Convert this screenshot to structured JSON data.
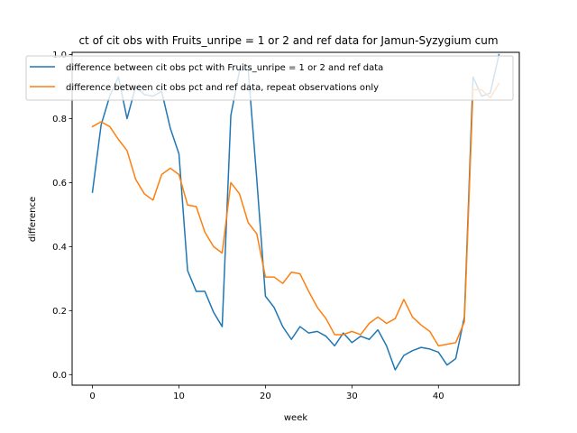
{
  "chart_data": {
    "type": "line",
    "title": "ct of cit obs with Fruits_unripe = 1 or 2 and ref data for Jamun-Syzygium cum",
    "xlabel": "week",
    "ylabel": "difference",
    "xlim": [
      -2.35,
      49.35
    ],
    "ylim": [
      -0.033,
      1.007
    ],
    "xticks": [
      0,
      10,
      20,
      30,
      40
    ],
    "yticks": [
      0.0,
      0.2,
      0.4,
      0.6,
      0.8,
      1.0
    ],
    "xtick_labels": [
      "0",
      "10",
      "20",
      "30",
      "40"
    ],
    "ytick_labels": [
      "0.0",
      "0.2",
      "0.4",
      "0.6",
      "0.8",
      "1.0"
    ],
    "grid": false,
    "legend_position": "upper-center",
    "series": [
      {
        "name": "difference between cit obs pct with Fruits_unripe = 1 or 2 and ref data",
        "color": "#1f77b4",
        "x": [
          0,
          1,
          2,
          3,
          4,
          5,
          6,
          7,
          8,
          9,
          10,
          11,
          12,
          13,
          14,
          15,
          16,
          17,
          18,
          19,
          20,
          21,
          22,
          23,
          24,
          25,
          26,
          27,
          28,
          29,
          30,
          31,
          32,
          33,
          34,
          35,
          36,
          37,
          38,
          39,
          40,
          41,
          42,
          43,
          44,
          45,
          46,
          47
        ],
        "values": [
          0.57,
          0.78,
          0.87,
          0.93,
          0.8,
          0.9,
          0.875,
          0.87,
          0.885,
          0.77,
          0.69,
          0.325,
          0.26,
          0.26,
          0.195,
          0.15,
          0.81,
          0.95,
          0.955,
          0.61,
          0.245,
          0.21,
          0.15,
          0.11,
          0.15,
          0.13,
          0.135,
          0.12,
          0.09,
          0.13,
          0.1,
          0.12,
          0.11,
          0.14,
          0.09,
          0.015,
          0.06,
          0.075,
          0.085,
          0.08,
          0.07,
          0.03,
          0.05,
          0.18,
          0.93,
          0.87,
          0.88,
          1.0
        ]
      },
      {
        "name": "difference between cit obs pct and ref data, repeat observations only",
        "color": "#ff7f0e",
        "x": [
          0,
          1,
          2,
          3,
          4,
          5,
          6,
          7,
          8,
          9,
          10,
          11,
          12,
          13,
          14,
          15,
          16,
          17,
          18,
          19,
          20,
          21,
          22,
          23,
          24,
          25,
          26,
          27,
          28,
          29,
          30,
          31,
          32,
          33,
          34,
          35,
          36,
          37,
          38,
          39,
          40,
          41,
          42,
          43,
          44,
          45,
          46,
          47
        ],
        "values": [
          0.775,
          0.79,
          0.775,
          0.735,
          0.7,
          0.61,
          0.565,
          0.545,
          0.625,
          0.645,
          0.625,
          0.53,
          0.525,
          0.445,
          0.4,
          0.38,
          0.6,
          0.565,
          0.475,
          0.44,
          0.305,
          0.305,
          0.285,
          0.32,
          0.315,
          0.26,
          0.21,
          0.175,
          0.125,
          0.125,
          0.135,
          0.125,
          0.16,
          0.18,
          0.16,
          0.175,
          0.235,
          0.18,
          0.155,
          0.135,
          0.09,
          0.095,
          0.1,
          0.165,
          0.89,
          0.89,
          0.865,
          0.91
        ]
      }
    ]
  }
}
